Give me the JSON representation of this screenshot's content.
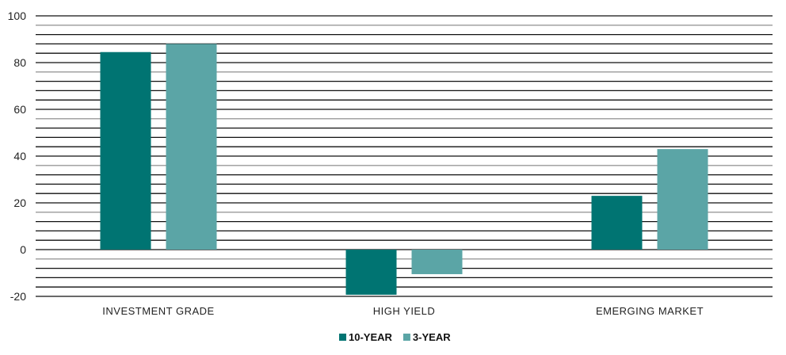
{
  "chart_data": {
    "type": "bar",
    "title": "",
    "xlabel": "",
    "ylabel": "",
    "categories": [
      "INVESTMENT GRADE",
      "HIGH YIELD",
      "EMERGING MARKET"
    ],
    "series": [
      {
        "name": "10-YEAR",
        "values": [
          84.5,
          -19.3,
          23
        ],
        "color": "#007472"
      },
      {
        "name": "3-YEAR",
        "values": [
          88,
          -10.5,
          43
        ],
        "color": "#5ba5a6"
      }
    ],
    "ylim": [
      -20,
      100
    ],
    "yticks": [
      -20,
      0,
      20,
      40,
      60,
      80,
      100
    ],
    "grid": true,
    "grid_step": 4,
    "legend": "bottom-center"
  }
}
